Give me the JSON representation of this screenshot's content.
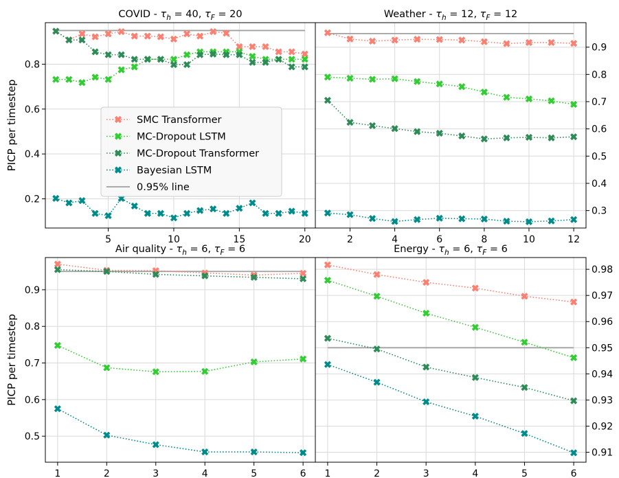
{
  "chart_data": [
    {
      "id": "covid",
      "type": "line",
      "title": "COVID - τ_h = 40, τ_F = 20",
      "title_parts": {
        "prefix": "COVID - ",
        "p1_sym": "τ",
        "p1_sub": "h",
        "p1_val": " = 40, ",
        "p2_sym": "τ",
        "p2_sub": "F",
        "p2_val": " = 20"
      },
      "ylabel": "PICP per timestep",
      "xlim": [
        0.2,
        20.8
      ],
      "ylim": [
        0.07,
        0.985
      ],
      "xticks": [
        5,
        10,
        15,
        20
      ],
      "yticks": [
        0.2,
        0.4,
        0.6,
        0.8
      ],
      "ytick_labels": [
        "0.2",
        "0.4",
        "0.6",
        "0.8"
      ],
      "yaxis_side": "left",
      "x": [
        1,
        2,
        3,
        4,
        5,
        6,
        7,
        8,
        9,
        10,
        11,
        12,
        13,
        14,
        15,
        16,
        17,
        18,
        19,
        20
      ],
      "reference": {
        "x": [
          1,
          20
        ],
        "y": [
          0.95,
          0.95
        ]
      },
      "series": [
        {
          "values": [
            0.947,
            0.908,
            0.935,
            0.922,
            0.935,
            0.945,
            0.925,
            0.925,
            0.922,
            0.912,
            0.935,
            0.925,
            0.945,
            0.938,
            0.878,
            0.878,
            0.878,
            0.855,
            0.855,
            0.845
          ]
        },
        {
          "values": [
            0.732,
            0.732,
            0.718,
            0.742,
            0.732,
            0.775,
            0.788,
            0.822,
            0.822,
            0.822,
            0.842,
            0.855,
            0.855,
            0.855,
            0.855,
            0.835,
            0.822,
            0.822,
            0.822,
            0.822
          ]
        },
        {
          "values": [
            0.947,
            0.908,
            0.908,
            0.855,
            0.842,
            0.842,
            0.822,
            0.822,
            0.822,
            0.798,
            0.798,
            0.842,
            0.845,
            0.842,
            0.842,
            0.808,
            0.808,
            0.822,
            0.788,
            0.788
          ]
        },
        {
          "values": [
            0.202,
            0.182,
            0.192,
            0.135,
            0.125,
            0.202,
            0.168,
            0.135,
            0.135,
            0.115,
            0.135,
            0.148,
            0.155,
            0.135,
            0.158,
            0.182,
            0.135,
            0.135,
            0.145,
            0.135
          ]
        }
      ]
    },
    {
      "id": "weather",
      "type": "line",
      "title": "Weather - τ_h = 12, τ_F = 12",
      "title_parts": {
        "prefix": "Weather - ",
        "p1_sym": "τ",
        "p1_sub": "h",
        "p1_val": " = 12, ",
        "p2_sym": "τ",
        "p2_sub": "F",
        "p2_val": " = 12"
      },
      "ylabel": "",
      "xlim": [
        0.45,
        12.55
      ],
      "ylim": [
        0.236,
        0.99
      ],
      "xticks": [
        2,
        4,
        6,
        8,
        10,
        12
      ],
      "yticks": [
        0.3,
        0.4,
        0.5,
        0.6,
        0.7,
        0.8,
        0.9
      ],
      "ytick_labels": [
        "0.3",
        "0.4",
        "0.5",
        "0.6",
        "0.7",
        "0.8",
        "0.9"
      ],
      "yaxis_side": "right",
      "x": [
        1,
        2,
        3,
        4,
        5,
        6,
        7,
        8,
        9,
        10,
        11,
        12
      ],
      "reference": {
        "x": [
          1,
          12
        ],
        "y": [
          0.95,
          0.95
        ]
      },
      "series": [
        {
          "values": [
            0.953,
            0.93,
            0.922,
            0.926,
            0.929,
            0.928,
            0.926,
            0.92,
            0.913,
            0.917,
            0.917,
            0.914
          ]
        },
        {
          "values": [
            0.79,
            0.786,
            0.782,
            0.784,
            0.774,
            0.765,
            0.755,
            0.735,
            0.716,
            0.71,
            0.703,
            0.69
          ]
        },
        {
          "values": [
            0.705,
            0.624,
            0.612,
            0.601,
            0.59,
            0.584,
            0.574,
            0.563,
            0.567,
            0.569,
            0.567,
            0.571
          ]
        },
        {
          "values": [
            0.291,
            0.285,
            0.271,
            0.26,
            0.267,
            0.272,
            0.27,
            0.269,
            0.261,
            0.259,
            0.262,
            0.267
          ]
        }
      ]
    },
    {
      "id": "airquality",
      "type": "line",
      "title": "Air quality - τ_h = 6, τ_F = 6",
      "title_parts": {
        "prefix": "Air quality - ",
        "p1_sym": "τ",
        "p1_sub": "h",
        "p1_val": " = 6, ",
        "p2_sym": "τ",
        "p2_sub": "F",
        "p2_val": " = 6"
      },
      "ylabel": "PICP per timestep",
      "xlim": [
        0.75,
        6.25
      ],
      "ylim": [
        0.429,
        0.988
      ],
      "xticks": [
        1,
        2,
        3,
        4,
        5,
        6
      ],
      "yticks": [
        0.5,
        0.6,
        0.7,
        0.8,
        0.9
      ],
      "ytick_labels": [
        "0.5",
        "0.6",
        "0.7",
        "0.8",
        "0.9"
      ],
      "yaxis_side": "left",
      "x": [
        1,
        2,
        3,
        4,
        5,
        6
      ],
      "reference": {
        "x": [
          1,
          6
        ],
        "y": [
          0.95,
          0.95
        ]
      },
      "series": [
        {
          "values": [
            0.97,
            0.953,
            0.952,
            0.946,
            0.94,
            0.945
          ]
        },
        {
          "values": [
            0.748,
            0.687,
            0.676,
            0.677,
            0.703,
            0.711
          ]
        },
        {
          "values": [
            0.955,
            0.95,
            0.942,
            0.938,
            0.934,
            0.93
          ]
        },
        {
          "values": [
            0.575,
            0.503,
            0.477,
            0.457,
            0.457,
            0.455
          ]
        }
      ]
    },
    {
      "id": "energy",
      "type": "line",
      "title": "Energy - τ_h = 6, τ_F = 6",
      "title_parts": {
        "prefix": "Energy - ",
        "p1_sym": "τ",
        "p1_sub": "h",
        "p1_val": " = 6, ",
        "p2_sym": "τ",
        "p2_sub": "F",
        "p2_val": " = 6"
      },
      "ylabel": "",
      "xlim": [
        0.75,
        6.25
      ],
      "ylim": [
        0.9062,
        0.9845
      ],
      "xticks": [
        1,
        2,
        3,
        4,
        5,
        6
      ],
      "yticks": [
        0.91,
        0.92,
        0.93,
        0.94,
        0.95,
        0.96,
        0.97,
        0.98
      ],
      "ytick_labels": [
        "0.91",
        "0.92",
        "0.93",
        "0.94",
        "0.95",
        "0.96",
        "0.97",
        "0.98"
      ],
      "yaxis_side": "right",
      "x": [
        1,
        2,
        3,
        4,
        5,
        6
      ],
      "reference": {
        "x": [
          1,
          6
        ],
        "y": [
          0.95,
          0.95
        ]
      },
      "series": [
        {
          "values": [
            0.9817,
            0.978,
            0.975,
            0.9728,
            0.9697,
            0.9675
          ]
        },
        {
          "values": [
            0.9758,
            0.9697,
            0.9632,
            0.9578,
            0.9521,
            0.9462
          ]
        },
        {
          "values": [
            0.9536,
            0.9495,
            0.9426,
            0.9386,
            0.9348,
            0.9297
          ]
        },
        {
          "values": [
            0.9436,
            0.9368,
            0.9293,
            0.9238,
            0.9172,
            0.9098
          ]
        }
      ]
    }
  ],
  "legend": {
    "entries": [
      "SMC Transformer",
      "MC-Dropout LSTM",
      "MC-Dropout Transformer",
      "Bayesian LSTM",
      "0.95% line"
    ]
  },
  "colors": {
    "smc_transformer": "#fa8072",
    "mc_dropout_lstm": "#32cd32",
    "mc_dropout_transformer": "#2e8b57",
    "bayesian_lstm": "#008b8b",
    "reference_line": "#a0a0a0",
    "grid": "#d9d9d9"
  }
}
